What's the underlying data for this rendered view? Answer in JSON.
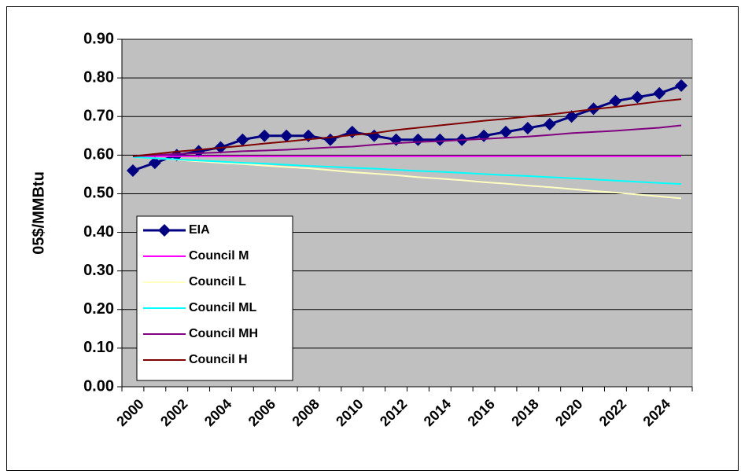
{
  "chart_data": {
    "type": "line",
    "y_label": "05$/MMBtu",
    "categories": [
      "2000",
      null,
      "2002",
      null,
      "2004",
      null,
      "2006",
      null,
      "2008",
      null,
      "2010",
      null,
      "2012",
      null,
      "2014",
      null,
      "2016",
      null,
      "2018",
      null,
      "2020",
      null,
      "2022",
      null,
      "2024",
      null
    ],
    "ylim": [
      0,
      0.9
    ],
    "yticks": [
      {
        "value": 0,
        "label": "0.00"
      },
      {
        "value": 0.1,
        "label": "0.10"
      },
      {
        "value": 0.2,
        "label": "0.20"
      },
      {
        "value": 0.3,
        "label": "0.30"
      },
      {
        "value": 0.4,
        "label": "0.40"
      },
      {
        "value": 0.5,
        "label": "0.50"
      },
      {
        "value": 0.6,
        "label": "0.60"
      },
      {
        "value": 0.7,
        "label": "0.70"
      },
      {
        "value": 0.8,
        "label": "0.80"
      },
      {
        "value": 0.9,
        "label": "0.90"
      }
    ],
    "grid": true,
    "legend": "lower-left",
    "series": [
      {
        "name": "EIA",
        "color": "#000080",
        "marker": "diamond",
        "values": [
          0.56,
          0.58,
          0.6,
          0.61,
          0.62,
          0.64,
          0.65,
          0.65,
          0.65,
          0.64,
          0.66,
          0.65,
          0.64,
          0.64,
          0.64,
          0.64,
          0.65,
          0.66,
          0.67,
          0.68,
          0.7,
          0.72,
          0.74,
          0.75,
          0.76,
          0.78
        ]
      },
      {
        "name": "Council M",
        "color": "#ff00ff",
        "values": [
          0.597,
          0.597,
          0.597,
          0.597,
          0.597,
          0.597,
          0.597,
          0.597,
          0.597,
          0.597,
          0.597,
          0.597,
          0.597,
          0.597,
          0.597,
          0.597,
          0.597,
          0.597,
          0.597,
          0.597,
          0.597,
          0.597,
          0.597,
          0.597,
          0.597,
          0.597
        ]
      },
      {
        "name": "Council L",
        "color": "#ffffc0",
        "values": [
          0.595,
          0.592,
          0.588,
          0.584,
          0.58,
          0.577,
          0.573,
          0.569,
          0.566,
          0.561,
          0.556,
          0.552,
          0.548,
          0.543,
          0.539,
          0.535,
          0.53,
          0.526,
          0.521,
          0.517,
          0.512,
          0.507,
          0.503,
          0.498,
          0.493,
          0.488
        ]
      },
      {
        "name": "Council ML",
        "color": "#00ffff",
        "values": [
          0.595,
          0.592,
          0.589,
          0.586,
          0.583,
          0.58,
          0.578,
          0.575,
          0.572,
          0.57,
          0.567,
          0.565,
          0.562,
          0.559,
          0.557,
          0.554,
          0.551,
          0.548,
          0.546,
          0.543,
          0.54,
          0.537,
          0.534,
          0.531,
          0.528,
          0.525
        ]
      },
      {
        "name": "Council MH",
        "color": "#800080",
        "values": [
          0.597,
          0.6,
          0.603,
          0.605,
          0.607,
          0.61,
          0.612,
          0.614,
          0.617,
          0.62,
          0.622,
          0.627,
          0.631,
          0.634,
          0.636,
          0.639,
          0.642,
          0.645,
          0.648,
          0.652,
          0.657,
          0.66,
          0.663,
          0.667,
          0.671,
          0.677
        ]
      },
      {
        "name": "Council H",
        "color": "#800000",
        "values": [
          0.597,
          0.603,
          0.609,
          0.614,
          0.619,
          0.624,
          0.63,
          0.635,
          0.641,
          0.646,
          0.652,
          0.657,
          0.665,
          0.671,
          0.677,
          0.683,
          0.689,
          0.694,
          0.7,
          0.705,
          0.712,
          0.719,
          0.725,
          0.732,
          0.739,
          0.745
        ]
      }
    ]
  }
}
